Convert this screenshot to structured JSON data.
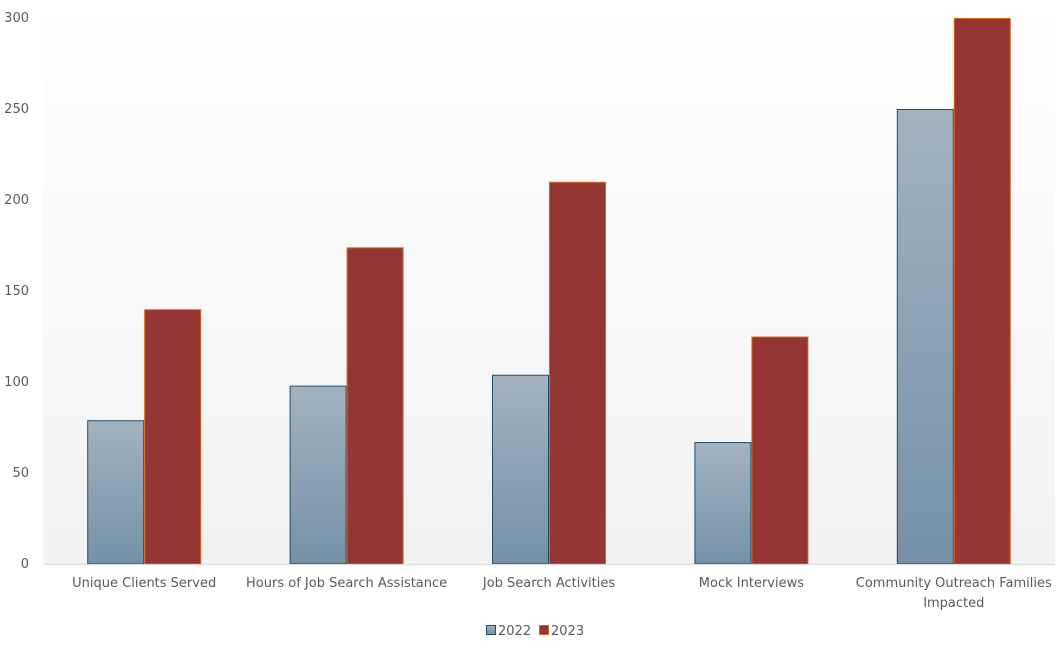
{
  "chart_data": {
    "type": "bar",
    "categories": [
      [
        "Unique Clients Served"
      ],
      [
        "Hours of Job Search Assistance"
      ],
      [
        "Job Search Activities"
      ],
      [
        "Mock Interviews"
      ],
      [
        "Community Outreach Families",
        "Impacted"
      ]
    ],
    "series": [
      {
        "name": "2022",
        "values": [
          79,
          98,
          104,
          67,
          250
        ]
      },
      {
        "name": "2023",
        "values": [
          140,
          174,
          210,
          125,
          300
        ]
      }
    ],
    "ylim": [
      0,
      300
    ],
    "yticks": [
      0,
      50,
      100,
      150,
      200,
      250,
      300
    ],
    "grid": false,
    "legend": {
      "position": "bottom-center",
      "entries": [
        "2022",
        "2023"
      ]
    },
    "colors": {
      "2022_top": "#a3b2bf",
      "2022_bottom": "#7591a7",
      "2022_border": "#1f4e6b",
      "2023_fill": "#963634",
      "2023_border": "#d6661c",
      "plot_bg_top": "#ffffff",
      "plot_bg_bottom": "#f2f2f2",
      "axis_line": "#d9d9d9"
    }
  }
}
